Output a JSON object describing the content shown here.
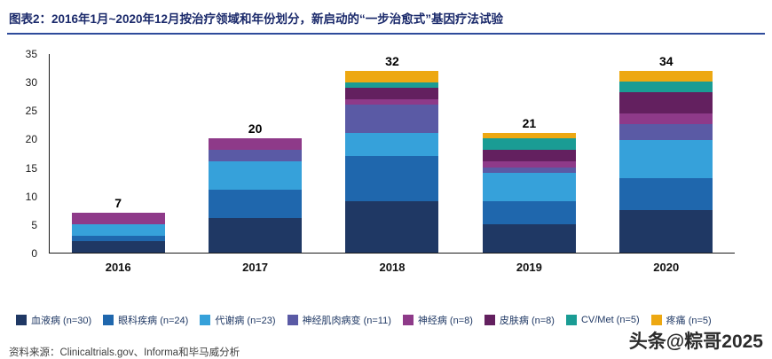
{
  "header": {
    "title": "图表2：2016年1月~2020年12月按治疗领域和年份划分，新启动的“一步治愈式”基因疗法试验"
  },
  "chart_data": {
    "type": "bar",
    "stacked": true,
    "categories": [
      "2016",
      "2017",
      "2018",
      "2019",
      "2020"
    ],
    "totals": [
      7,
      20,
      32,
      21,
      34
    ],
    "series": [
      {
        "name": "血液病 (n=30)",
        "color": "#1f3864",
        "values": [
          2,
          6,
          9,
          5,
          8
        ]
      },
      {
        "name": "眼科疾病 (n=24)",
        "color": "#1f67ad",
        "values": [
          1,
          5,
          8,
          4,
          6
        ]
      },
      {
        "name": "代谢病 (n=23)",
        "color": "#36a1da",
        "values": [
          2,
          5,
          4,
          5,
          7
        ]
      },
      {
        "name": "神经肌肉病变 (n=11)",
        "color": "#5a5aa5",
        "values": [
          0,
          2,
          5,
          1,
          3
        ]
      },
      {
        "name": "神经病 (n=8)",
        "color": "#8e3a89",
        "values": [
          2,
          2,
          1,
          1,
          2
        ]
      },
      {
        "name": "皮肤病 (n=8)",
        "color": "#63205f",
        "values": [
          0,
          0,
          2,
          2,
          4
        ]
      },
      {
        "name": "CV/Met (n=5)",
        "color": "#1a9c94",
        "values": [
          0,
          0,
          1,
          2,
          2
        ]
      },
      {
        "name": "疼痛 (n=5)",
        "color": "#eda812",
        "values": [
          0,
          0,
          2,
          1,
          2
        ]
      }
    ],
    "title": "",
    "xlabel": "",
    "ylabel": "",
    "ylim": [
      0,
      35
    ],
    "yticks": [
      0,
      5,
      10,
      15,
      20,
      25,
      30,
      35
    ],
    "grid": false,
    "legend_position": "bottom"
  },
  "footer": {
    "source": "资料来源：Clinicaltrials.gov、Informa和毕马威分析"
  },
  "watermark": {
    "text": "头条@粽哥2025"
  }
}
